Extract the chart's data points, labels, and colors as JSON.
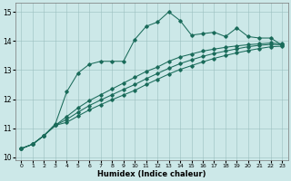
{
  "xlabel": "Humidex (Indice chaleur)",
  "bg_color": "#cce8e8",
  "line_color": "#1a6b5a",
  "xlim": [
    -0.5,
    23.5
  ],
  "ylim": [
    9.9,
    15.3
  ],
  "xticks": [
    0,
    1,
    2,
    3,
    4,
    5,
    6,
    7,
    8,
    9,
    10,
    11,
    12,
    13,
    14,
    15,
    16,
    17,
    18,
    19,
    20,
    21,
    22,
    23
  ],
  "yticks": [
    10,
    11,
    12,
    13,
    14,
    15
  ],
  "line1_x": [
    0,
    1,
    2,
    3,
    4,
    5,
    6,
    7,
    8,
    9,
    10,
    11,
    12,
    13,
    14,
    15,
    16,
    17,
    18,
    19,
    20,
    21,
    22,
    23
  ],
  "line1_y": [
    10.3,
    10.45,
    10.75,
    11.15,
    12.25,
    12.9,
    13.2,
    13.3,
    13.3,
    13.3,
    14.05,
    14.5,
    14.65,
    15.0,
    14.7,
    14.2,
    14.25,
    14.3,
    14.15,
    14.45,
    14.15,
    14.1,
    14.1,
    13.85
  ],
  "line2_x": [
    0,
    1,
    2,
    3,
    4,
    5,
    6,
    7,
    8,
    9,
    10,
    11,
    12,
    13,
    14,
    15,
    16,
    17,
    18,
    19,
    20,
    21,
    22,
    23
  ],
  "line2_y": [
    10.3,
    10.45,
    10.75,
    11.1,
    11.4,
    11.7,
    11.95,
    12.15,
    12.35,
    12.55,
    12.75,
    12.95,
    13.1,
    13.3,
    13.45,
    13.55,
    13.65,
    13.72,
    13.78,
    13.83,
    13.87,
    13.9,
    13.93,
    13.9
  ],
  "line3_x": [
    0,
    1,
    2,
    3,
    4,
    5,
    6,
    7,
    8,
    9,
    10,
    11,
    12,
    13,
    14,
    15,
    16,
    17,
    18,
    19,
    20,
    21,
    22,
    23
  ],
  "line3_y": [
    10.3,
    10.45,
    10.75,
    11.1,
    11.3,
    11.55,
    11.78,
    11.97,
    12.15,
    12.33,
    12.5,
    12.7,
    12.88,
    13.06,
    13.22,
    13.35,
    13.47,
    13.57,
    13.65,
    13.73,
    13.8,
    13.85,
    13.88,
    13.87
  ],
  "line4_x": [
    0,
    1,
    2,
    3,
    4,
    5,
    6,
    7,
    8,
    9,
    10,
    11,
    12,
    13,
    14,
    15,
    16,
    17,
    18,
    19,
    20,
    21,
    22,
    23
  ],
  "line4_y": [
    10.3,
    10.45,
    10.75,
    11.1,
    11.2,
    11.42,
    11.63,
    11.81,
    11.98,
    12.14,
    12.3,
    12.5,
    12.68,
    12.86,
    13.02,
    13.15,
    13.28,
    13.4,
    13.5,
    13.59,
    13.67,
    13.74,
    13.8,
    13.82
  ]
}
